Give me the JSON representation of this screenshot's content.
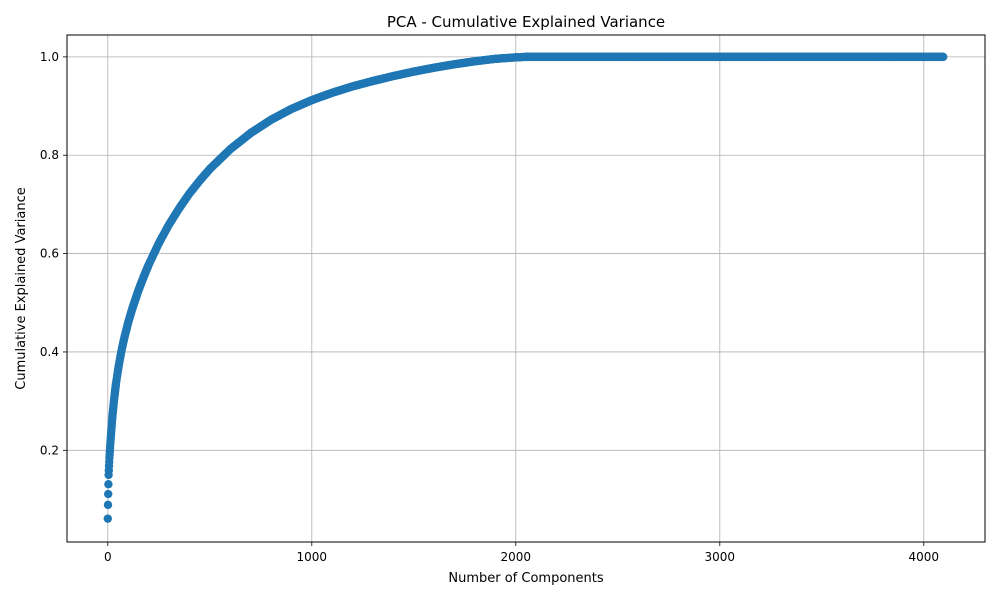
{
  "chart_data": {
    "type": "scatter",
    "title": "PCA - Cumulative Explained Variance",
    "xlabel": "Number of Components",
    "ylabel": "Cumulative Explained Variance",
    "xlim": [
      -200,
      4300
    ],
    "ylim": [
      0.0135,
      1.0445
    ],
    "x_ticks": [
      0,
      1000,
      2000,
      3000,
      4000
    ],
    "x_tick_labels": [
      "0",
      "1000",
      "2000",
      "3000",
      "4000"
    ],
    "y_ticks": [
      0.2,
      0.4,
      0.6,
      0.8,
      1.0
    ],
    "y_tick_labels": [
      "0.2",
      "0.4",
      "0.6",
      "0.8",
      "1.0"
    ],
    "grid": true,
    "legend": "none",
    "marker": "circle",
    "color": "#1f77b4",
    "series": [
      {
        "x": [
          0,
          1,
          2,
          3,
          4,
          5,
          6,
          8,
          10,
          12,
          15,
          18,
          22,
          26,
          30,
          35,
          40,
          50,
          60,
          70,
          80,
          100,
          120,
          150,
          175,
          200,
          250,
          300,
          350,
          400,
          450,
          500,
          600,
          700,
          800,
          900,
          1000,
          1100,
          1200,
          1300,
          1400,
          1500,
          1600,
          1700,
          1800,
          1900,
          2000,
          2048,
          2200,
          2400,
          2600,
          2800,
          3000,
          3200,
          3400,
          3600,
          3800,
          4000,
          4095
        ],
        "y": [
          0.061,
          0.089,
          0.111,
          0.131,
          0.15,
          0.159,
          0.168,
          0.185,
          0.198,
          0.211,
          0.228,
          0.245,
          0.266,
          0.283,
          0.3,
          0.318,
          0.335,
          0.363,
          0.387,
          0.408,
          0.427,
          0.46,
          0.488,
          0.525,
          0.552,
          0.577,
          0.621,
          0.659,
          0.692,
          0.722,
          0.748,
          0.772,
          0.812,
          0.845,
          0.872,
          0.894,
          0.912,
          0.927,
          0.94,
          0.951,
          0.961,
          0.97,
          0.978,
          0.985,
          0.991,
          0.996,
          0.999,
          1.0,
          1.0,
          1.0,
          1.0,
          1.0,
          1.0,
          1.0,
          1.0,
          1.0,
          1.0,
          1.0,
          1.0
        ]
      }
    ]
  }
}
